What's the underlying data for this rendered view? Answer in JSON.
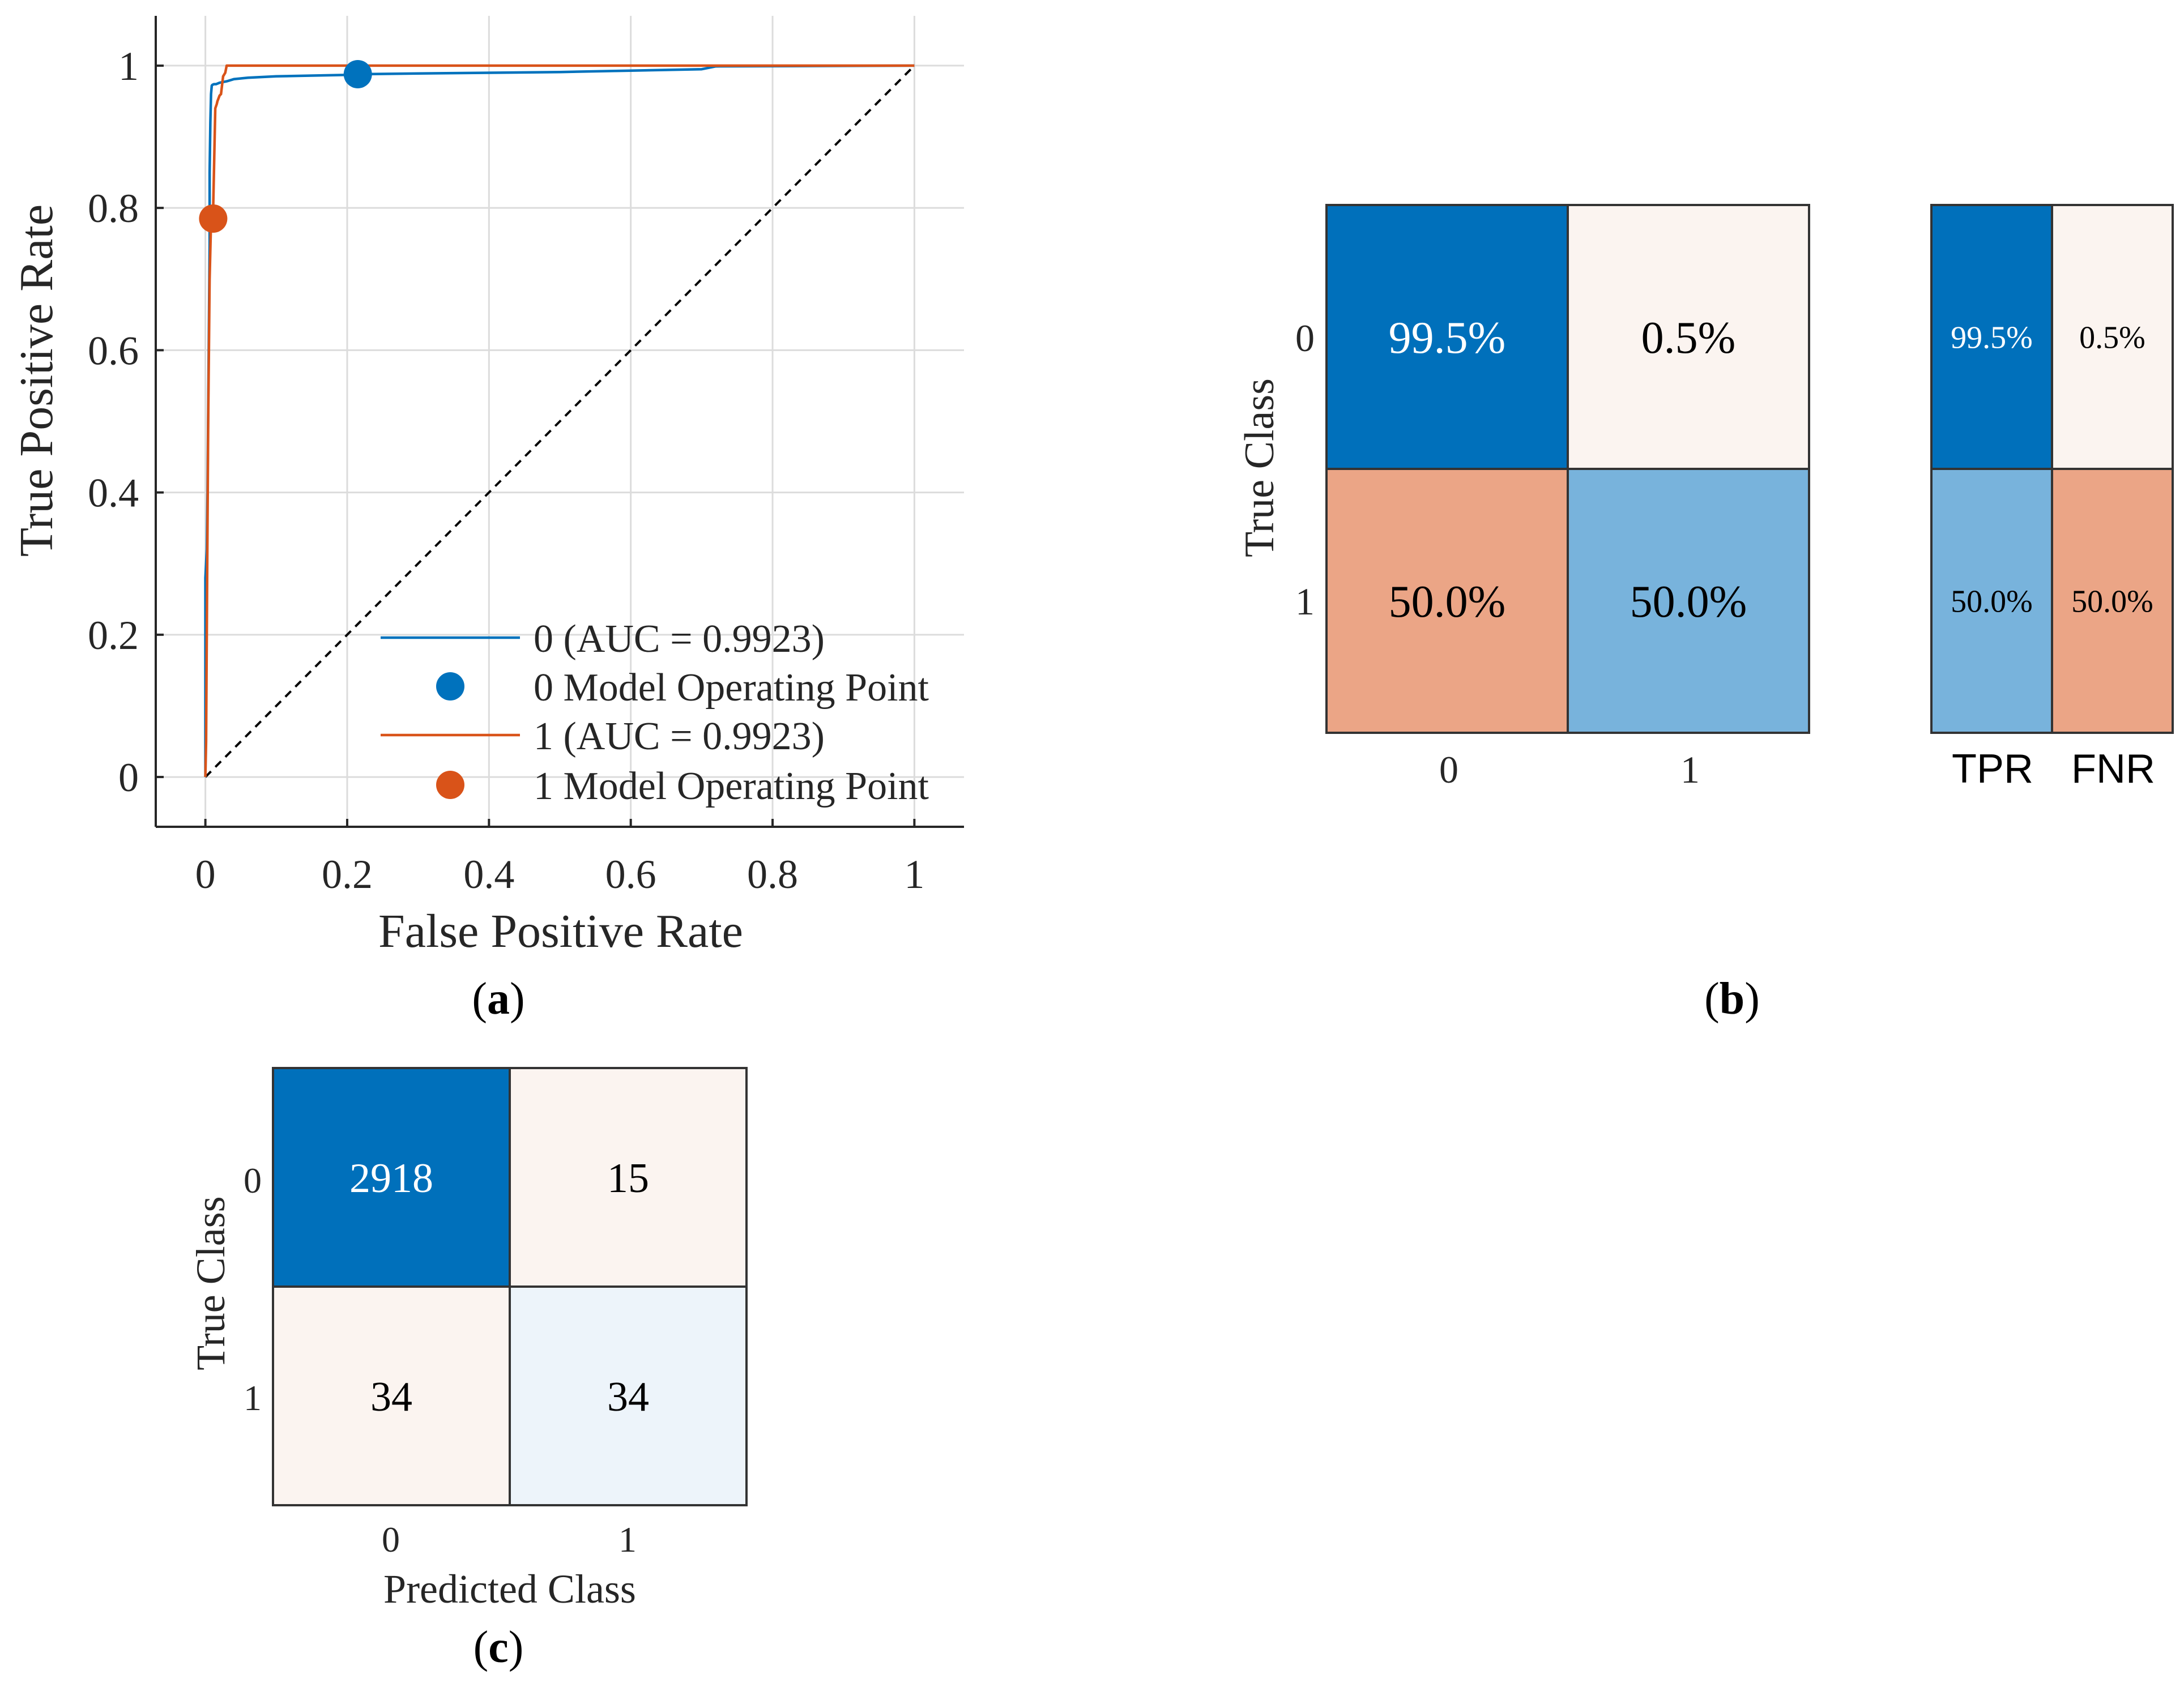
{
  "panel_labels": [
    "a",
    "b",
    "c"
  ],
  "colors": {
    "series0": "#0072BD",
    "series1": "#D95319",
    "grid": "#dcdcdc",
    "axis": "#262626",
    "diag": "#000000",
    "cell_blue_dark": "#0070BB",
    "cell_blue_light": "#78B3DC",
    "cell_orange": "#EBA586",
    "cell_cream": "#FBF4F0",
    "cell_pale_blue": "#EDF4FA",
    "border": "#333333"
  },
  "chart_data": [
    {
      "id": "a",
      "type": "line",
      "title": "",
      "xlabel": "False Positive Rate",
      "ylabel": "True Positive Rate",
      "xlim": [
        -0.07,
        1.07
      ],
      "ylim": [
        -0.07,
        1.07
      ],
      "xticks": [
        0,
        0.2,
        0.4,
        0.6,
        0.8,
        1
      ],
      "yticks": [
        0,
        0.2,
        0.4,
        0.6,
        0.8,
        1
      ],
      "xtick_labels": [
        "0",
        "0.2",
        "0.4",
        "0.6",
        "0.8",
        "1"
      ],
      "ytick_labels": [
        "0",
        "0.2",
        "0.4",
        "0.6",
        "0.8",
        "1"
      ],
      "grid": true,
      "legend_position": "bottom-right",
      "series": [
        {
          "name": "0 (AUC = 0.9923)",
          "color": "#0072BD",
          "x": [
            0,
            0,
            0.002,
            0.003,
            0.004,
            0.005,
            0.006,
            0.006,
            0.007,
            0.008,
            0.009,
            0.01,
            0.012,
            0.015,
            0.02,
            0.03,
            0.04,
            0.06,
            0.1,
            0.15,
            0.2,
            0.215,
            0.3,
            0.4,
            0.5,
            0.6,
            0.7,
            0.72,
            1.0
          ],
          "y": [
            0,
            0.28,
            0.32,
            0.4,
            0.52,
            0.64,
            0.75,
            0.85,
            0.92,
            0.96,
            0.972,
            0.973,
            0.974,
            0.974,
            0.976,
            0.978,
            0.981,
            0.983,
            0.985,
            0.986,
            0.987,
            0.988,
            0.989,
            0.99,
            0.991,
            0.993,
            0.995,
            0.999,
            1.0
          ]
        },
        {
          "name": "1 (AUC = 0.9923)",
          "color": "#D95319",
          "x": [
            0,
            0.001,
            0.002,
            0.004,
            0.006,
            0.008,
            0.01,
            0.011,
            0.014,
            0.016,
            0.017,
            0.02,
            0.022,
            0.025,
            0.028,
            0.03,
            1.0
          ],
          "y": [
            0,
            0.05,
            0.2,
            0.5,
            0.7,
            0.78,
            0.78,
            0.8,
            0.94,
            0.946,
            0.95,
            0.958,
            0.96,
            0.985,
            0.99,
            1.0,
            1.0
          ]
        }
      ],
      "operating_points": [
        {
          "name": "0 Model Operating Point",
          "x": 0.215,
          "y": 0.988,
          "color": "#0072BD"
        },
        {
          "name": "1 Model Operating Point",
          "x": 0.011,
          "y": 0.785,
          "color": "#D95319"
        }
      ],
      "diagonal": {
        "x": [
          0,
          1
        ],
        "y": [
          0,
          1
        ]
      },
      "legend": [
        {
          "label": "0 (AUC = 0.9923)",
          "kind": "line",
          "color": "#0072BD"
        },
        {
          "label": "0 Model Operating Point",
          "kind": "marker",
          "color": "#0072BD"
        },
        {
          "label": "1 (AUC = 0.9923)",
          "kind": "line",
          "color": "#D95319"
        },
        {
          "label": "1 Model Operating Point",
          "kind": "marker",
          "color": "#D95319"
        }
      ]
    },
    {
      "id": "b",
      "type": "heatmap",
      "title": "",
      "ylabel": "True Class",
      "xlabel": "",
      "x_labels": [
        "0",
        "1"
      ],
      "y_labels": [
        "0",
        "1"
      ],
      "values": [
        [
          "99.5%",
          "0.5%"
        ],
        [
          "50.0%",
          "50.0%"
        ]
      ],
      "cell_colors": [
        [
          "#0070BB",
          "#FBF4F0"
        ],
        [
          "#EBA586",
          "#78B3DC"
        ]
      ],
      "text_colors": [
        [
          "#ffffff",
          "#000000"
        ],
        [
          "#000000",
          "#000000"
        ]
      ],
      "summary": {
        "x_labels": [
          "TPR",
          "FNR"
        ],
        "values": [
          [
            "99.5%",
            "0.5%"
          ],
          [
            "50.0%",
            "50.0%"
          ]
        ],
        "cell_colors": [
          [
            "#0070BB",
            "#FBF4F0"
          ],
          [
            "#78B3DC",
            "#EBA586"
          ]
        ],
        "text_colors": [
          [
            "#ffffff",
            "#000000"
          ],
          [
            "#000000",
            "#000000"
          ]
        ]
      }
    },
    {
      "id": "c",
      "type": "heatmap",
      "title": "",
      "ylabel": "True Class",
      "xlabel": "Predicted Class",
      "x_labels": [
        "0",
        "1"
      ],
      "y_labels": [
        "0",
        "1"
      ],
      "values": [
        [
          2918,
          15
        ],
        [
          34,
          34
        ]
      ],
      "cell_colors": [
        [
          "#0070BB",
          "#FBF4F0"
        ],
        [
          "#FBF4F0",
          "#EDF4FA"
        ]
      ],
      "text_colors": [
        [
          "#ffffff",
          "#000000"
        ],
        [
          "#000000",
          "#000000"
        ]
      ]
    }
  ]
}
